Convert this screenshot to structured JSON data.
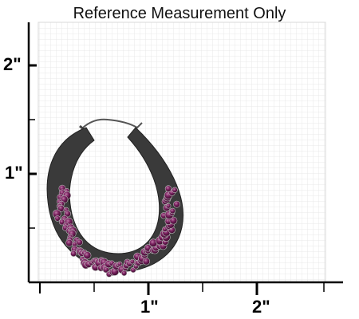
{
  "title": "Reference Measurement Only",
  "axes": {
    "y_ticks": [
      "2\"",
      "1\""
    ],
    "x_ticks": [
      "1\"",
      "2\""
    ]
  },
  "product": {
    "type": "hoop-earring",
    "stone_color": "#5a1845",
    "metal_color": "#4a4a4a"
  },
  "colors": {
    "grid": "#dcdcdc",
    "axis": "#000000",
    "grid_bg": "#ffffff"
  }
}
